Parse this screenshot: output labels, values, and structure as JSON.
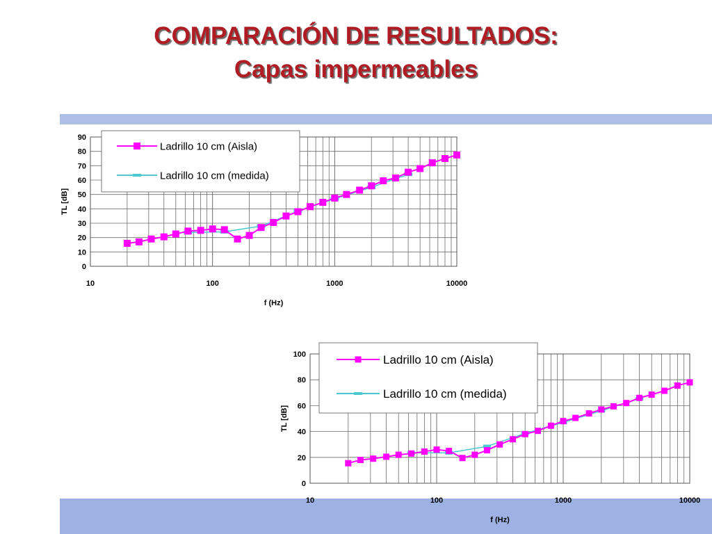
{
  "slide": {
    "title_line1": "COMPARACIÓN DE RESULTADOS:",
    "title_line2": "Capas impermeables",
    "colors": {
      "title": "#b01c24",
      "band": "#aec0e6",
      "aisla": "#ff00ff",
      "medida": "#4cc8d0"
    }
  },
  "chart_data": [
    {
      "type": "line",
      "xscale": "log",
      "xlabel": "f (Hz)",
      "ylabel": "TL [dB]",
      "xlim": [
        10,
        10000
      ],
      "ylim": [
        0,
        90
      ],
      "x_ticks": [
        "10",
        "100",
        "1000",
        "10000"
      ],
      "y_ticks": [
        "0",
        "10",
        "20",
        "30",
        "40",
        "50",
        "60",
        "70",
        "80",
        "90"
      ],
      "grid": true,
      "legend_position": "top-left",
      "x": [
        20,
        25,
        31.5,
        40,
        50,
        63,
        80,
        100,
        125,
        160,
        200,
        250,
        315,
        400,
        500,
        630,
        800,
        1000,
        1250,
        1600,
        2000,
        2500,
        3150,
        4000,
        5000,
        6300,
        8000,
        10000
      ],
      "series": [
        {
          "name": "Ladrillo 10 cm (Aisla)",
          "values": [
            16,
            17,
            19,
            20.5,
            22.5,
            24.5,
            25,
            26,
            25.5,
            19,
            21.5,
            27,
            30.5,
            35,
            38,
            41.5,
            44.5,
            47.5,
            50,
            53,
            56,
            59.5,
            61.5,
            65.5,
            68,
            72,
            75,
            77.5
          ]
        },
        {
          "name": "Ladrillo 10 cm (medida)",
          "values": [
            null,
            null,
            null,
            null,
            null,
            23.5,
            null,
            null,
            24,
            null,
            null,
            28,
            null,
            null,
            38.5,
            null,
            null,
            47,
            null,
            null,
            55,
            null,
            null,
            64,
            null,
            null,
            null,
            null
          ]
        }
      ]
    },
    {
      "type": "line",
      "xscale": "log",
      "xlabel": "f (Hz)",
      "ylabel": "TL [dB]",
      "xlim": [
        10,
        10000
      ],
      "ylim": [
        0,
        100
      ],
      "x_ticks": [
        "10",
        "100",
        "1000",
        "10000"
      ],
      "y_ticks": [
        "0",
        "20",
        "40",
        "60",
        "80",
        "100"
      ],
      "grid": true,
      "legend_position": "top-left",
      "x": [
        20,
        25,
        31.5,
        40,
        50,
        63,
        80,
        100,
        125,
        160,
        200,
        250,
        315,
        400,
        500,
        630,
        800,
        1000,
        1250,
        1600,
        2000,
        2500,
        3150,
        4000,
        5000,
        6300,
        8000,
        10000
      ],
      "series": [
        {
          "name": "Ladrillo 10 cm (Aisla)",
          "values": [
            15.5,
            18,
            19,
            20.5,
            22,
            23,
            24.5,
            26,
            25,
            19.5,
            22,
            25.5,
            30,
            34,
            38,
            40.5,
            44.5,
            48,
            50.5,
            54,
            57,
            59.5,
            62,
            66,
            68.5,
            71.5,
            75.5,
            78
          ]
        },
        {
          "name": "Ladrillo 10 cm (medida)",
          "values": [
            null,
            null,
            null,
            null,
            null,
            23.5,
            null,
            null,
            23.5,
            null,
            null,
            28.5,
            null,
            null,
            38.5,
            null,
            null,
            47,
            null,
            null,
            56,
            null,
            null,
            65.5,
            null,
            null,
            null,
            null
          ]
        }
      ]
    }
  ]
}
